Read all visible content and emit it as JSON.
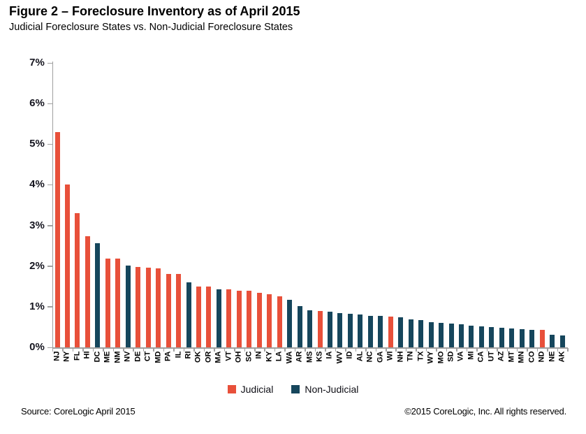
{
  "title": "Figure 2 – Foreclosure Inventory as of April 2015",
  "subtitle": "Judicial Foreclosure States vs. Non-Judicial Foreclosure States",
  "legend": {
    "items": [
      {
        "label": "Judicial",
        "type": "judicial"
      },
      {
        "label": "Non-Judicial",
        "type": "non_judicial"
      }
    ]
  },
  "footer": {
    "source": "Source: CoreLogic  April 2015",
    "copyright": "©2015 CoreLogic, Inc.  All rights reserved."
  },
  "colors": {
    "judicial": "#E8503A",
    "non_judicial": "#16465C",
    "axis": "#A0A0A0",
    "text": "#000000"
  },
  "chart_data": {
    "type": "bar",
    "title": "Foreclosure Inventory as of April 2015",
    "ylim": [
      0,
      7
    ],
    "yticks": [
      "0%",
      "1%",
      "2%",
      "3%",
      "4%",
      "5%",
      "6%",
      "7%"
    ],
    "grid": false,
    "legend_position": "bottom",
    "series": [
      {
        "name": "Judicial",
        "color": "#E8503A"
      },
      {
        "name": "Non-Judicial",
        "color": "#16465C"
      }
    ],
    "points": [
      {
        "state": "NJ",
        "value": 5.3,
        "category": "Judicial"
      },
      {
        "state": "NY",
        "value": 4.0,
        "category": "Judicial"
      },
      {
        "state": "FL",
        "value": 3.3,
        "category": "Judicial"
      },
      {
        "state": "HI",
        "value": 2.73,
        "category": "Judicial"
      },
      {
        "state": "DC",
        "value": 2.56,
        "category": "Non-Judicial"
      },
      {
        "state": "ME",
        "value": 2.18,
        "category": "Judicial"
      },
      {
        "state": "NM",
        "value": 2.18,
        "category": "Judicial"
      },
      {
        "state": "NV",
        "value": 2.01,
        "category": "Non-Judicial"
      },
      {
        "state": "DE",
        "value": 1.97,
        "category": "Judicial"
      },
      {
        "state": "CT",
        "value": 1.96,
        "category": "Judicial"
      },
      {
        "state": "MD",
        "value": 1.94,
        "category": "Judicial"
      },
      {
        "state": "PA",
        "value": 1.81,
        "category": "Judicial"
      },
      {
        "state": "IL",
        "value": 1.8,
        "category": "Judicial"
      },
      {
        "state": "RI",
        "value": 1.6,
        "category": "Non-Judicial"
      },
      {
        "state": "OK",
        "value": 1.5,
        "category": "Judicial"
      },
      {
        "state": "OR",
        "value": 1.5,
        "category": "Judicial"
      },
      {
        "state": "MA",
        "value": 1.43,
        "category": "Non-Judicial"
      },
      {
        "state": "VT",
        "value": 1.43,
        "category": "Judicial"
      },
      {
        "state": "OH",
        "value": 1.4,
        "category": "Judicial"
      },
      {
        "state": "SC",
        "value": 1.39,
        "category": "Judicial"
      },
      {
        "state": "IN",
        "value": 1.35,
        "category": "Judicial"
      },
      {
        "state": "KY",
        "value": 1.3,
        "category": "Judicial"
      },
      {
        "state": "LA",
        "value": 1.26,
        "category": "Judicial"
      },
      {
        "state": "WA",
        "value": 1.17,
        "category": "Non-Judicial"
      },
      {
        "state": "AR",
        "value": 1.01,
        "category": "Non-Judicial"
      },
      {
        "state": "MS",
        "value": 0.92,
        "category": "Non-Judicial"
      },
      {
        "state": "KS",
        "value": 0.9,
        "category": "Judicial"
      },
      {
        "state": "IA",
        "value": 0.87,
        "category": "Non-Judicial"
      },
      {
        "state": "WV",
        "value": 0.84,
        "category": "Non-Judicial"
      },
      {
        "state": "ID",
        "value": 0.82,
        "category": "Non-Judicial"
      },
      {
        "state": "AL",
        "value": 0.8,
        "category": "Non-Judicial"
      },
      {
        "state": "NC",
        "value": 0.78,
        "category": "Non-Judicial"
      },
      {
        "state": "GA",
        "value": 0.77,
        "category": "Non-Judicial"
      },
      {
        "state": "WI",
        "value": 0.76,
        "category": "Judicial"
      },
      {
        "state": "NH",
        "value": 0.74,
        "category": "Non-Judicial"
      },
      {
        "state": "TN",
        "value": 0.69,
        "category": "Non-Judicial"
      },
      {
        "state": "TX",
        "value": 0.67,
        "category": "Non-Judicial"
      },
      {
        "state": "WY",
        "value": 0.62,
        "category": "Non-Judicial"
      },
      {
        "state": "MO",
        "value": 0.6,
        "category": "Non-Judicial"
      },
      {
        "state": "SD",
        "value": 0.58,
        "category": "Non-Judicial"
      },
      {
        "state": "VA",
        "value": 0.57,
        "category": "Non-Judicial"
      },
      {
        "state": "MI",
        "value": 0.54,
        "category": "Non-Judicial"
      },
      {
        "state": "CA",
        "value": 0.52,
        "category": "Non-Judicial"
      },
      {
        "state": "UT",
        "value": 0.5,
        "category": "Non-Judicial"
      },
      {
        "state": "AZ",
        "value": 0.48,
        "category": "Non-Judicial"
      },
      {
        "state": "MT",
        "value": 0.47,
        "category": "Non-Judicial"
      },
      {
        "state": "MN",
        "value": 0.45,
        "category": "Non-Judicial"
      },
      {
        "state": "CO",
        "value": 0.43,
        "category": "Non-Judicial"
      },
      {
        "state": "ND",
        "value": 0.43,
        "category": "Judicial"
      },
      {
        "state": "NE",
        "value": 0.31,
        "category": "Non-Judicial"
      },
      {
        "state": "AK",
        "value": 0.29,
        "category": "Non-Judicial"
      }
    ]
  }
}
